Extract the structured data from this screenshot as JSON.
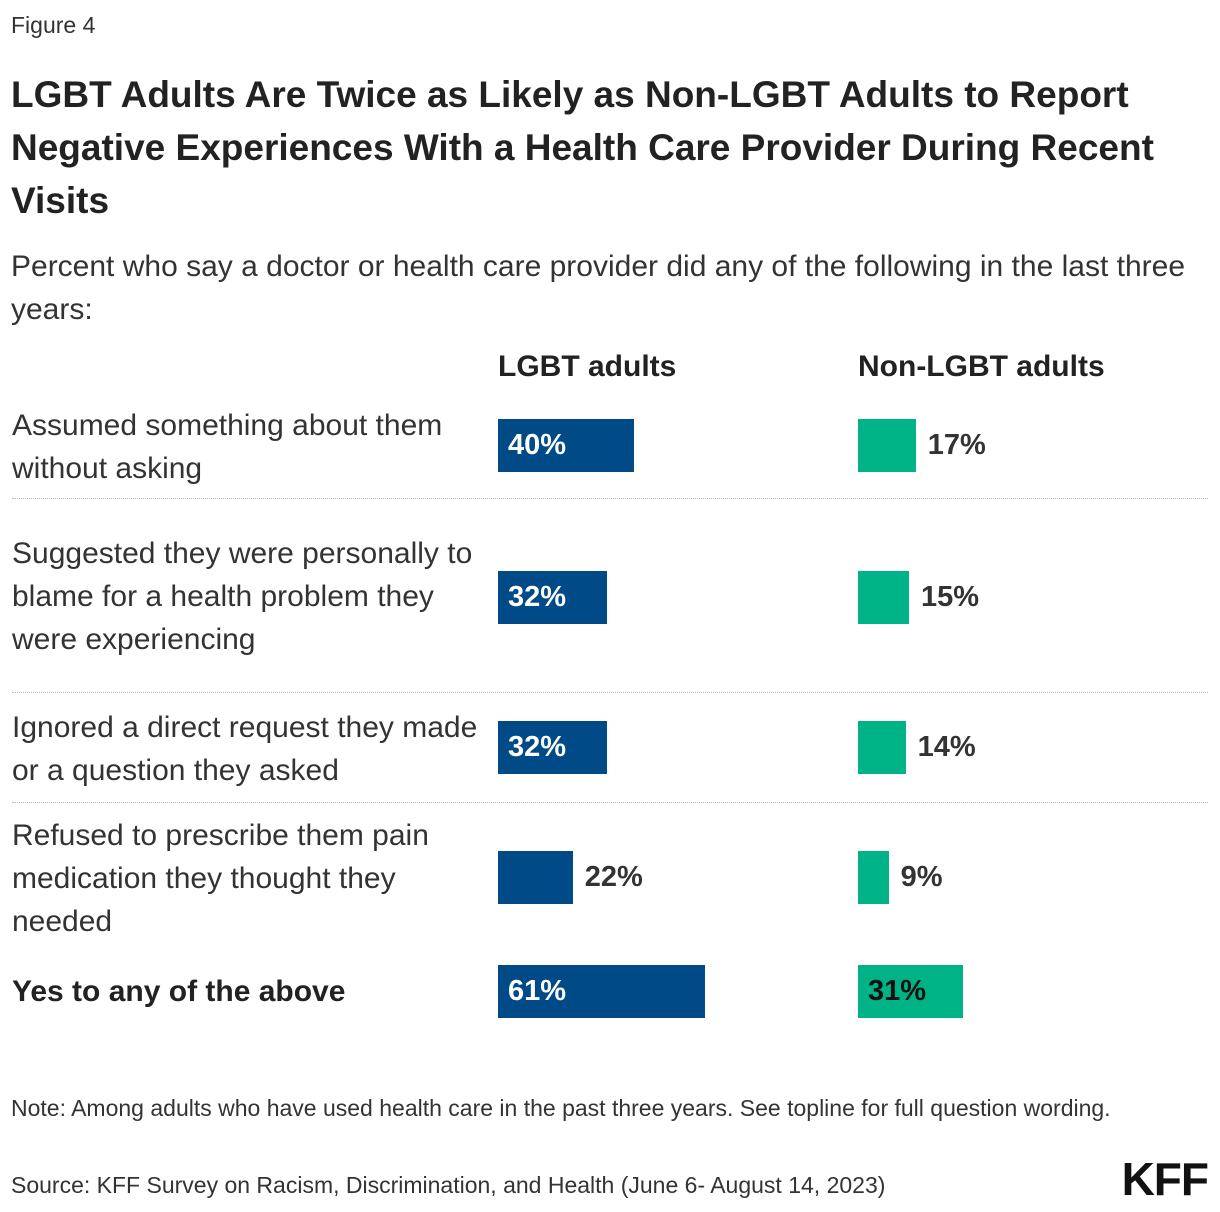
{
  "figure_label": "Figure 4",
  "title": "LGBT Adults Are Twice as Likely as Non-LGBT Adults to Report Negative Experiences With a Health Care Provider During Recent Visits",
  "subtitle": "Percent who say a doctor or health care provider did any of the following in the last three years:",
  "note": "Note: Among adults who have used health care in the past three years. See topline for full question wording.",
  "source": "Source: KFF Survey on Racism, Discrimination, and Health (June 6- August 14, 2023)",
  "logo_text": "KFF",
  "colors": {
    "lgbt": "#004a87",
    "non_lgbt": "#00b386"
  },
  "chart_data": {
    "type": "bar",
    "orientation": "horizontal",
    "layout": "small-multiples-two-columns",
    "categories": [
      "Assumed something about them without asking",
      "Suggested they were personally to blame for a health problem they were experiencing",
      "Ignored a direct request they made or a question they asked",
      "Refused to prescribe them pain medication they thought they needed",
      "Yes to any of the above"
    ],
    "series": [
      {
        "name": "LGBT adults",
        "values": [
          40,
          32,
          32,
          22,
          61
        ],
        "color": "#004a87"
      },
      {
        "name": "Non-LGBT adults",
        "values": [
          17,
          15,
          14,
          9,
          31
        ],
        "color": "#00b386"
      }
    ],
    "value_suffix": "%",
    "xlim": [
      0,
      100
    ],
    "grid": false,
    "legend": "column-headers"
  }
}
